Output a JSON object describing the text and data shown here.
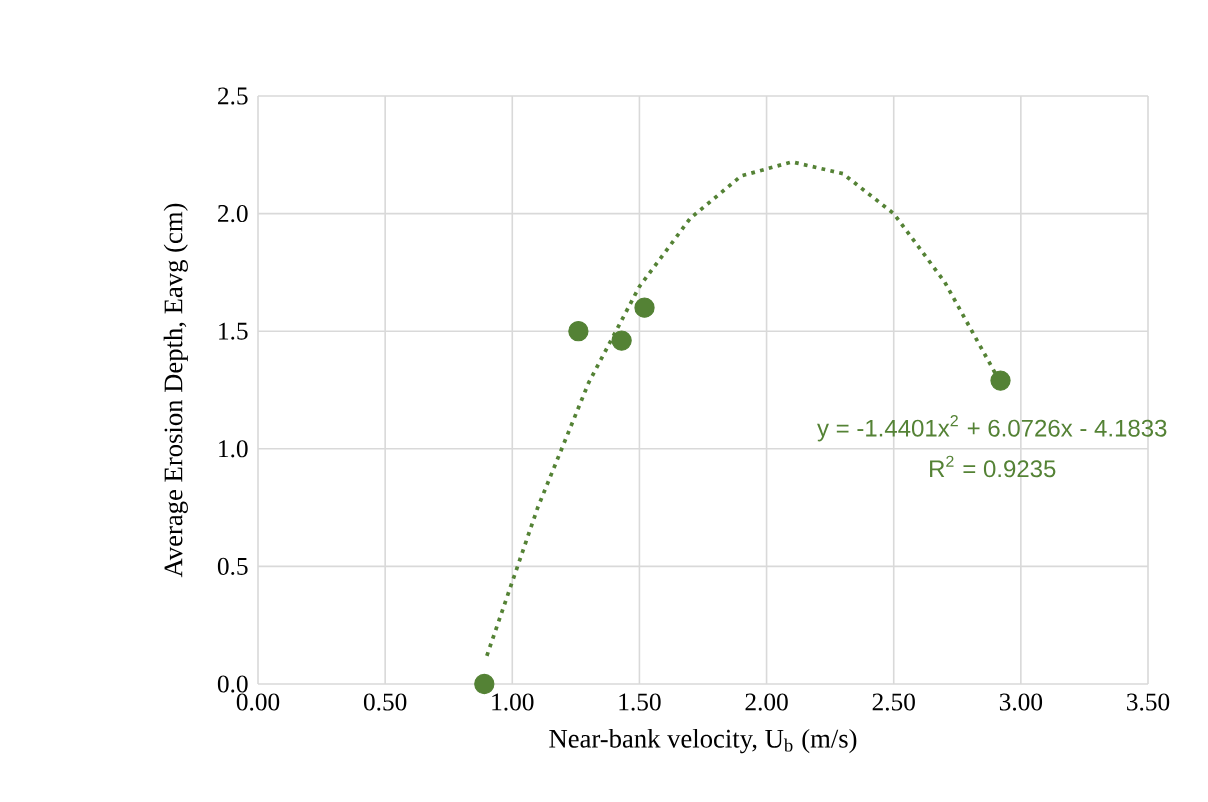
{
  "chart_data": {
    "type": "scatter",
    "xlabel": "Near-bank velocity, U$_{b}$ (m/s)",
    "ylabel": "Average Erosion Depth, Eavg (cm)",
    "annotations": [
      "y = -1.4401x$^{2}$ + 6.0726x - 4.1833",
      "R$^{2}$ = 0.9235"
    ],
    "xlim": [
      0,
      3.5
    ],
    "ylim": [
      0,
      2.5
    ],
    "xticks": [
      {
        "value": 0,
        "label": "0.00"
      },
      {
        "value": 0.5,
        "label": "0.50"
      },
      {
        "value": 1,
        "label": "1.00"
      },
      {
        "value": 1.5,
        "label": "1.50"
      },
      {
        "value": 2,
        "label": "2.00"
      },
      {
        "value": 2.5,
        "label": "2.50"
      },
      {
        "value": 3,
        "label": "3.00"
      },
      {
        "value": 3.5,
        "label": "3.50"
      }
    ],
    "yticks": [
      {
        "value": 0,
        "label": "0.0"
      },
      {
        "value": 0.5,
        "label": "0.5"
      },
      {
        "value": 1,
        "label": "1.0"
      },
      {
        "value": 1.5,
        "label": "1.5"
      },
      {
        "value": 2,
        "label": "2.0"
      },
      {
        "value": 2.5,
        "label": "2.5"
      }
    ],
    "grid": true,
    "series": [
      {
        "color": "#548235",
        "marker": "circle",
        "x": [
          0.89,
          1.26,
          1.43,
          1.52,
          2.92
        ],
        "values": [
          0.0,
          1.5,
          1.46,
          1.6,
          1.29
        ]
      },
      {
        "type": "line",
        "color": "#548235",
        "marker": "none",
        "line_style": "dotted",
        "x": [
          0.9,
          1.1,
          1.3,
          1.5,
          1.7,
          1.9,
          2.1,
          2.3,
          2.5,
          2.7,
          2.9
        ],
        "values": [
          0.12,
          0.75,
          1.28,
          1.69,
          1.98,
          2.16,
          2.22,
          2.17,
          2.0,
          1.71,
          1.32
        ]
      }
    ]
  }
}
